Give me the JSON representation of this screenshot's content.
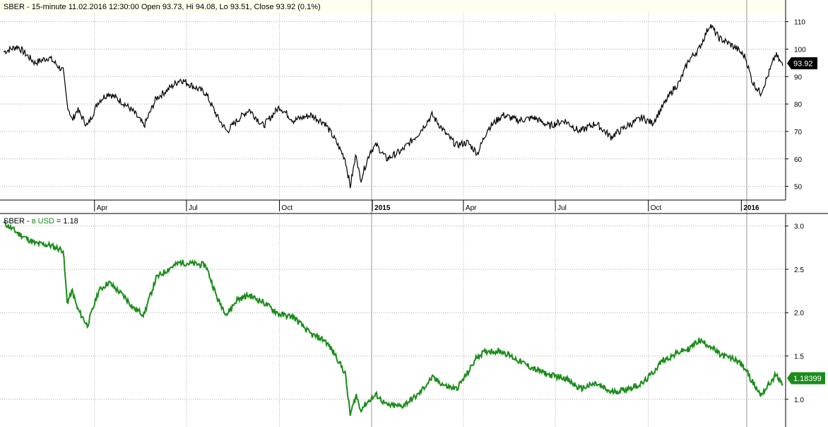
{
  "chart_data": [
    {
      "type": "line",
      "title": "SBER - 15-minute 11.02.2016 12:30:00 Open 93.73, Hi 94.08, Lo 93.51, Close 93.92 (0.1%)",
      "x_ticks": [
        "Apr",
        "Jul",
        "Oct",
        "2015",
        "Apr",
        "Jul",
        "Oct",
        "2016"
      ],
      "y_ticks": [
        "110",
        "100",
        "90",
        "80",
        "70",
        "60",
        "50"
      ],
      "ylim": [
        45,
        113
      ],
      "grid": true,
      "last_value_label": "93.92",
      "series": [
        {
          "color": "#000000",
          "x": [
            "2014-01-01",
            "2014-01-15",
            "2014-02-01",
            "2014-02-15",
            "2014-03-01",
            "2014-03-05",
            "2014-03-10",
            "2014-03-15",
            "2014-03-25",
            "2014-04-05",
            "2014-04-15",
            "2014-05-01",
            "2014-05-10",
            "2014-05-20",
            "2014-06-01",
            "2014-06-15",
            "2014-06-25",
            "2014-07-10",
            "2014-07-20",
            "2014-08-01",
            "2014-08-10",
            "2014-08-20",
            "2014-09-01",
            "2014-09-15",
            "2014-10-01",
            "2014-10-15",
            "2014-11-01",
            "2014-11-15",
            "2014-11-25",
            "2014-12-05",
            "2014-12-10",
            "2014-12-16",
            "2014-12-20",
            "2014-12-30",
            "2015-01-05",
            "2015-01-15",
            "2015-01-30",
            "2015-02-15",
            "2015-03-01",
            "2015-03-15",
            "2015-03-25",
            "2015-04-05",
            "2015-04-15",
            "2015-04-25",
            "2015-05-10",
            "2015-05-25",
            "2015-06-10",
            "2015-06-25",
            "2015-07-10",
            "2015-07-25",
            "2015-08-10",
            "2015-08-25",
            "2015-09-10",
            "2015-09-25",
            "2015-10-05",
            "2015-10-15",
            "2015-10-25",
            "2015-11-01",
            "2015-11-10",
            "2015-11-20",
            "2015-12-01",
            "2015-12-10",
            "2015-12-20",
            "2015-12-28",
            "2016-01-05",
            "2016-01-12",
            "2016-01-20",
            "2016-01-27",
            "2016-02-04",
            "2016-02-11"
          ],
          "y": [
            99,
            101,
            95,
            97,
            92,
            80,
            74,
            78,
            72,
            81,
            84,
            80,
            77,
            72,
            82,
            86,
            89,
            86,
            84,
            75,
            70,
            74,
            78,
            72,
            79,
            74,
            76,
            73,
            67,
            60,
            50,
            62,
            52,
            63,
            65,
            60,
            63,
            69,
            76,
            69,
            65,
            66,
            62,
            71,
            76,
            74,
            75,
            72,
            74,
            70,
            73,
            68,
            72,
            75,
            73,
            79,
            85,
            88,
            96,
            100,
            109,
            104,
            102,
            100,
            97,
            88,
            84,
            90,
            98,
            93.92
          ]
        }
      ]
    },
    {
      "type": "line",
      "title": "SBER - в USD = 1.18",
      "title_prefix": "SBER - ",
      "title_mid": "в USD",
      "title_suffix": " = 1.18",
      "x_ticks": [],
      "y_ticks": [
        "3.0",
        "2.5",
        "2.0",
        "1.5",
        "1.0"
      ],
      "ylim": [
        0.68,
        3.12
      ],
      "grid": true,
      "last_value_label": "1.18399",
      "series": [
        {
          "color": "#1a8c1a",
          "x": [
            "2014-01-01",
            "2014-01-15",
            "2014-02-01",
            "2014-02-15",
            "2014-03-01",
            "2014-03-05",
            "2014-03-10",
            "2014-03-15",
            "2014-03-25",
            "2014-04-05",
            "2014-04-15",
            "2014-05-01",
            "2014-05-10",
            "2014-05-20",
            "2014-06-01",
            "2014-06-15",
            "2014-06-25",
            "2014-07-10",
            "2014-07-20",
            "2014-08-01",
            "2014-08-10",
            "2014-08-20",
            "2014-09-01",
            "2014-09-15",
            "2014-10-01",
            "2014-10-15",
            "2014-11-01",
            "2014-11-15",
            "2014-11-25",
            "2014-12-05",
            "2014-12-10",
            "2014-12-16",
            "2014-12-20",
            "2014-12-30",
            "2015-01-05",
            "2015-01-15",
            "2015-01-30",
            "2015-02-15",
            "2015-03-01",
            "2015-03-15",
            "2015-03-25",
            "2015-04-05",
            "2015-04-15",
            "2015-04-25",
            "2015-05-10",
            "2015-05-25",
            "2015-06-10",
            "2015-06-25",
            "2015-07-10",
            "2015-07-25",
            "2015-08-10",
            "2015-08-25",
            "2015-09-10",
            "2015-09-25",
            "2015-10-05",
            "2015-10-15",
            "2015-10-25",
            "2015-11-01",
            "2015-11-10",
            "2015-11-20",
            "2015-12-01",
            "2015-12-10",
            "2015-12-20",
            "2015-12-28",
            "2016-01-05",
            "2016-01-12",
            "2016-01-20",
            "2016-01-27",
            "2016-02-04",
            "2016-02-11"
          ],
          "y": [
            3.04,
            2.92,
            2.8,
            2.78,
            2.72,
            2.12,
            2.25,
            2.05,
            1.85,
            2.25,
            2.35,
            2.18,
            2.05,
            1.98,
            2.4,
            2.52,
            2.58,
            2.56,
            2.55,
            2.15,
            1.98,
            2.15,
            2.2,
            2.12,
            1.98,
            1.95,
            1.75,
            1.68,
            1.52,
            1.3,
            0.82,
            1.05,
            0.88,
            1.0,
            1.05,
            0.93,
            0.92,
            1.05,
            1.25,
            1.15,
            1.12,
            1.3,
            1.5,
            1.56,
            1.55,
            1.45,
            1.35,
            1.28,
            1.25,
            1.12,
            1.18,
            1.08,
            1.12,
            1.18,
            1.3,
            1.45,
            1.5,
            1.55,
            1.58,
            1.68,
            1.62,
            1.52,
            1.48,
            1.45,
            1.35,
            1.2,
            1.05,
            1.15,
            1.28,
            1.18
          ]
        }
      ]
    }
  ],
  "colors": {
    "title_band": "#fffff0",
    "axis_line": "#000000",
    "grid": "#a9a9a9",
    "separator": "#999999",
    "badge_top": "#000000",
    "badge_bottom": "#1a8c1a",
    "legend_green": "#1a8c1a"
  }
}
